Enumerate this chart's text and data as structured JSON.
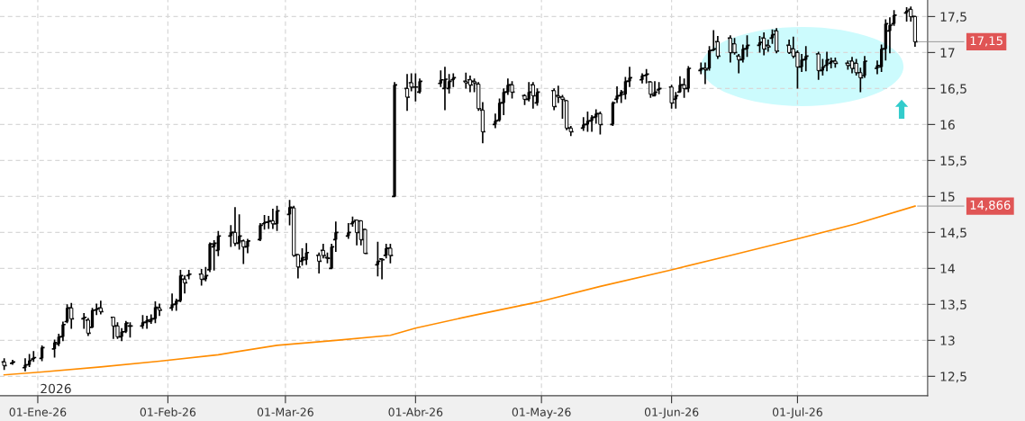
{
  "chart_data": {
    "type": "candlestick",
    "color": "#000000",
    "x": [
      "2025-12-24",
      "2025-12-26",
      "2025-12-29",
      "2025-12-30",
      "2025-12-31",
      "2026-01-02",
      "2026-01-05",
      "2026-01-06",
      "2026-01-07",
      "2026-01-08",
      "2026-01-09",
      "2026-01-12",
      "2026-01-13",
      "2026-01-14",
      "2026-01-15",
      "2026-01-16",
      "2026-01-19",
      "2026-01-20",
      "2026-01-21",
      "2026-01-22",
      "2026-01-23",
      "2026-01-26",
      "2026-01-27",
      "2026-01-28",
      "2026-01-29",
      "2026-01-30",
      "2026-02-02",
      "2026-02-03",
      "2026-02-04",
      "2026-02-05",
      "2026-02-06",
      "2026-02-09",
      "2026-02-10",
      "2026-02-11",
      "2026-02-12",
      "2026-02-13",
      "2026-02-16",
      "2026-02-17",
      "2026-02-18",
      "2026-02-19",
      "2026-02-20",
      "2026-02-23",
      "2026-02-24",
      "2026-02-25",
      "2026-02-26",
      "2026-02-27",
      "2026-03-02",
      "2026-03-03",
      "2026-03-04",
      "2026-03-05",
      "2026-03-06",
      "2026-03-09",
      "2026-03-10",
      "2026-03-11",
      "2026-03-12",
      "2026-03-13",
      "2026-03-16",
      "2026-03-17",
      "2026-03-18",
      "2026-03-19",
      "2026-03-20",
      "2026-03-23",
      "2026-03-24",
      "2026-03-25",
      "2026-03-26",
      "2026-03-27",
      "2026-03-30",
      "2026-03-31",
      "2026-04-01",
      "2026-04-02",
      "2026-04-07",
      "2026-04-08",
      "2026-04-09",
      "2026-04-10",
      "2026-04-13",
      "2026-04-14",
      "2026-04-15",
      "2026-04-16",
      "2026-04-17",
      "2026-04-20",
      "2026-04-21",
      "2026-04-22",
      "2026-04-23",
      "2026-04-24",
      "2026-04-27",
      "2026-04-28",
      "2026-04-29",
      "2026-04-30",
      "2026-05-04",
      "2026-05-05",
      "2026-05-06",
      "2026-05-07",
      "2026-05-08",
      "2026-05-11",
      "2026-05-12",
      "2026-05-13",
      "2026-05-14",
      "2026-05-15",
      "2026-05-18",
      "2026-05-19",
      "2026-05-20",
      "2026-05-21",
      "2026-05-22",
      "2026-05-25",
      "2026-05-26",
      "2026-05-27",
      "2026-05-28",
      "2026-05-29",
      "2026-06-01",
      "2026-06-02",
      "2026-06-03",
      "2026-06-04",
      "2026-06-05",
      "2026-06-08",
      "2026-06-09",
      "2026-06-10",
      "2026-06-11",
      "2026-06-12",
      "2026-06-15",
      "2026-06-16",
      "2026-06-17",
      "2026-06-18",
      "2026-06-19",
      "2026-06-22",
      "2026-06-23",
      "2026-06-24",
      "2026-06-25",
      "2026-06-26",
      "2026-06-29",
      "2026-06-30",
      "2026-07-01",
      "2026-07-02",
      "2026-07-03",
      "2026-07-06",
      "2026-07-07",
      "2026-07-08",
      "2026-07-09",
      "2026-07-10",
      "2026-07-13",
      "2026-07-14",
      "2026-07-15",
      "2026-07-16",
      "2026-07-17",
      "2026-07-20",
      "2026-07-21",
      "2026-07-22",
      "2026-07-23",
      "2026-07-24",
      "2026-07-27",
      "2026-07-28",
      "2026-07-29"
    ],
    "ohlc": [
      [
        12.7,
        12.74,
        12.6,
        12.65
      ],
      [
        12.68,
        12.72,
        12.67,
        12.7
      ],
      [
        12.62,
        12.74,
        12.58,
        12.66
      ],
      [
        12.66,
        12.8,
        12.64,
        12.72
      ],
      [
        12.74,
        12.84,
        12.71,
        12.76
      ],
      [
        12.75,
        12.92,
        12.72,
        12.9
      ],
      [
        12.88,
        13.0,
        12.77,
        12.97
      ],
      [
        12.95,
        13.08,
        12.93,
        13.05
      ],
      [
        13.05,
        13.25,
        13.0,
        13.22
      ],
      [
        13.26,
        13.49,
        13.25,
        13.45
      ],
      [
        13.45,
        13.51,
        13.17,
        13.3
      ],
      [
        13.3,
        13.37,
        13.17,
        13.32
      ],
      [
        13.28,
        13.3,
        13.07,
        13.1
      ],
      [
        13.18,
        13.44,
        13.18,
        13.42
      ],
      [
        13.42,
        13.5,
        13.36,
        13.44
      ],
      [
        13.45,
        13.54,
        13.37,
        13.4
      ],
      [
        13.32,
        13.32,
        13.03,
        13.2
      ],
      [
        13.2,
        13.24,
        13.03,
        13.05
      ],
      [
        13.05,
        13.16,
        13.0,
        13.12
      ],
      [
        13.12,
        13.26,
        13.11,
        13.24
      ],
      [
        13.2,
        13.24,
        13.05,
        13.2
      ],
      [
        13.2,
        13.34,
        13.17,
        13.25
      ],
      [
        13.25,
        13.33,
        13.17,
        13.28
      ],
      [
        13.26,
        13.35,
        13.24,
        13.3
      ],
      [
        13.3,
        13.53,
        13.25,
        13.46
      ],
      [
        13.45,
        13.5,
        13.35,
        13.42
      ],
      [
        13.45,
        13.64,
        13.42,
        13.5
      ],
      [
        13.5,
        13.57,
        13.42,
        13.55
      ],
      [
        13.55,
        13.97,
        13.54,
        13.9
      ],
      [
        13.85,
        13.89,
        13.66,
        13.8
      ],
      [
        13.9,
        13.97,
        13.86,
        13.92
      ],
      [
        13.92,
        13.98,
        13.77,
        13.85
      ],
      [
        13.85,
        14.01,
        13.83,
        13.9
      ],
      [
        13.98,
        14.35,
        13.96,
        14.34
      ],
      [
        14.3,
        14.38,
        13.98,
        14.35
      ],
      [
        14.25,
        14.51,
        14.18,
        14.45
      ],
      [
        14.45,
        14.59,
        14.31,
        14.5
      ],
      [
        14.5,
        14.84,
        14.32,
        14.35
      ],
      [
        14.35,
        14.74,
        14.27,
        14.45
      ],
      [
        14.38,
        14.39,
        14.07,
        14.3
      ],
      [
        14.3,
        14.4,
        14.22,
        14.38
      ],
      [
        14.4,
        14.62,
        14.39,
        14.6
      ],
      [
        14.62,
        14.73,
        14.55,
        14.64
      ],
      [
        14.64,
        14.72,
        14.56,
        14.66
      ],
      [
        14.66,
        14.82,
        14.56,
        14.62
      ],
      [
        14.62,
        14.86,
        14.53,
        14.8
      ],
      [
        14.75,
        14.94,
        14.61,
        14.85
      ],
      [
        14.84,
        14.86,
        14.17,
        14.18
      ],
      [
        14.19,
        14.19,
        13.87,
        14.02
      ],
      [
        14.1,
        14.27,
        14.05,
        14.15
      ],
      [
        14.12,
        14.34,
        14.06,
        14.22
      ],
      [
        14.18,
        14.21,
        13.94,
        14.1
      ],
      [
        14.25,
        14.33,
        14.15,
        14.18
      ],
      [
        14.15,
        14.21,
        14.08,
        14.14
      ],
      [
        14.0,
        14.33,
        14.0,
        14.3
      ],
      [
        14.4,
        14.64,
        14.24,
        14.5
      ],
      [
        14.45,
        14.62,
        14.42,
        14.5
      ],
      [
        14.62,
        14.71,
        14.59,
        14.65
      ],
      [
        14.67,
        14.67,
        14.33,
        14.5
      ],
      [
        14.66,
        14.66,
        14.33,
        14.4
      ],
      [
        14.54,
        14.54,
        14.21,
        14.21
      ],
      [
        14.05,
        14.36,
        13.9,
        14.1
      ],
      [
        14.13,
        14.13,
        13.86,
        14.12
      ],
      [
        14.18,
        14.33,
        14.15,
        14.28
      ],
      [
        14.28,
        14.33,
        14.08,
        14.18
      ],
      [
        15.0,
        16.58,
        15.0,
        16.55
      ],
      [
        16.5,
        16.69,
        16.2,
        16.38
      ],
      [
        16.58,
        16.7,
        16.47,
        16.52
      ],
      [
        16.52,
        16.7,
        16.33,
        16.52
      ],
      [
        16.45,
        16.63,
        16.44,
        16.6
      ],
      [
        16.57,
        16.74,
        16.53,
        16.62
      ],
      [
        16.5,
        16.79,
        16.21,
        16.63
      ],
      [
        16.5,
        16.69,
        16.44,
        16.6
      ],
      [
        16.62,
        16.7,
        16.53,
        16.65
      ],
      [
        16.6,
        16.71,
        16.51,
        16.58
      ],
      [
        16.62,
        16.67,
        16.46,
        16.55
      ],
      [
        16.6,
        16.63,
        16.46,
        16.58
      ],
      [
        16.56,
        16.58,
        16.2,
        16.22
      ],
      [
        16.2,
        16.3,
        15.75,
        15.9
      ],
      [
        16.0,
        16.14,
        15.96,
        16.05
      ],
      [
        16.06,
        16.35,
        16.05,
        16.3
      ],
      [
        16.3,
        16.49,
        16.14,
        16.45
      ],
      [
        16.45,
        16.63,
        16.42,
        16.55
      ],
      [
        16.55,
        16.59,
        16.37,
        16.45
      ],
      [
        16.4,
        16.41,
        16.28,
        16.35
      ],
      [
        16.35,
        16.58,
        16.33,
        16.45
      ],
      [
        16.55,
        16.58,
        16.23,
        16.4
      ],
      [
        16.3,
        16.49,
        16.27,
        16.45
      ],
      [
        16.47,
        16.49,
        16.21,
        16.25
      ],
      [
        16.4,
        16.53,
        16.31,
        16.38
      ],
      [
        16.38,
        16.4,
        16.09,
        16.35
      ],
      [
        16.33,
        16.33,
        15.93,
        15.95
      ],
      [
        15.95,
        15.97,
        15.85,
        15.9
      ],
      [
        15.95,
        16.09,
        15.92,
        16.0
      ],
      [
        16.0,
        16.17,
        15.91,
        16.05
      ],
      [
        16.05,
        16.12,
        15.91,
        16.1
      ],
      [
        16.1,
        16.2,
        16.02,
        16.15
      ],
      [
        16.15,
        16.17,
        15.87,
        16.0
      ],
      [
        16.0,
        16.31,
        15.99,
        16.3
      ],
      [
        16.35,
        16.52,
        16.31,
        16.4
      ],
      [
        16.4,
        16.47,
        16.31,
        16.45
      ],
      [
        16.42,
        16.65,
        16.36,
        16.6
      ],
      [
        16.6,
        16.79,
        16.53,
        16.65
      ],
      [
        16.62,
        16.7,
        16.58,
        16.68
      ],
      [
        16.68,
        16.76,
        16.58,
        16.7
      ],
      [
        16.59,
        16.59,
        16.38,
        16.42
      ],
      [
        16.4,
        16.59,
        16.4,
        16.45
      ],
      [
        16.48,
        16.58,
        16.43,
        16.5
      ],
      [
        16.52,
        16.54,
        16.23,
        16.3
      ],
      [
        16.35,
        16.44,
        16.23,
        16.4
      ],
      [
        16.45,
        16.66,
        16.45,
        16.55
      ],
      [
        16.55,
        16.63,
        16.38,
        16.5
      ],
      [
        16.5,
        16.8,
        16.46,
        16.78
      ],
      [
        16.75,
        16.85,
        16.71,
        16.78
      ],
      [
        16.78,
        16.85,
        16.57,
        16.76
      ],
      [
        16.78,
        17.08,
        16.76,
        17.03
      ],
      [
        17.03,
        17.3,
        17.03,
        17.05
      ],
      [
        17.15,
        17.22,
        16.92,
        16.95
      ],
      [
        17.2,
        17.23,
        16.87,
        17.0
      ],
      [
        17.12,
        17.19,
        16.98,
        17.0
      ],
      [
        16.95,
        16.97,
        16.72,
        16.9
      ],
      [
        16.9,
        17.1,
        16.87,
        17.05
      ],
      [
        17.05,
        17.23,
        16.95,
        17.1
      ],
      [
        17.1,
        17.22,
        17.01,
        17.14
      ],
      [
        17.2,
        17.27,
        16.97,
        17.05
      ],
      [
        17.1,
        17.17,
        17.02,
        17.08
      ],
      [
        17.2,
        17.31,
        17.13,
        17.25
      ],
      [
        17.3,
        17.33,
        17.0,
        17.02
      ],
      [
        17.1,
        17.17,
        16.99,
        17.0
      ],
      [
        17.05,
        17.21,
        16.93,
        16.95
      ],
      [
        17.0,
        17.02,
        16.51,
        16.8
      ],
      [
        16.8,
        16.97,
        16.74,
        16.9
      ],
      [
        16.9,
        17.08,
        16.75,
        16.95
      ],
      [
        16.98,
        17.0,
        16.63,
        16.75
      ],
      [
        16.75,
        16.9,
        16.69,
        16.8
      ],
      [
        16.82,
        17.0,
        16.75,
        16.9
      ],
      [
        16.85,
        16.92,
        16.79,
        16.88
      ],
      [
        16.88,
        16.92,
        16.8,
        16.85
      ],
      [
        16.85,
        16.88,
        16.77,
        16.82
      ],
      [
        16.88,
        16.93,
        16.72,
        16.78
      ],
      [
        16.85,
        16.9,
        16.69,
        16.72
      ],
      [
        16.72,
        16.78,
        16.46,
        16.65
      ],
      [
        16.68,
        16.94,
        16.66,
        16.88
      ],
      [
        16.78,
        16.88,
        16.71,
        16.82
      ],
      [
        16.8,
        17.1,
        16.74,
        17.05
      ],
      [
        17.05,
        17.45,
        16.9,
        17.4
      ],
      [
        17.3,
        17.48,
        17.0,
        17.38
      ],
      [
        17.4,
        17.58,
        17.38,
        17.52
      ],
      [
        17.55,
        17.62,
        17.44,
        17.58
      ],
      [
        17.6,
        17.63,
        17.44,
        17.5
      ],
      [
        17.5,
        17.5,
        17.09,
        17.15
      ]
    ],
    "series": [
      {
        "type": "line",
        "color": "#ff8c00",
        "x": [
          "2025-12-24",
          "2026-01-02",
          "2026-01-16",
          "2026-01-30",
          "2026-02-13",
          "2026-02-27",
          "2026-03-13",
          "2026-03-26",
          "2026-04-01",
          "2026-04-15",
          "2026-04-30",
          "2026-05-15",
          "2026-06-01",
          "2026-06-15",
          "2026-07-01",
          "2026-07-15",
          "2026-07-29"
        ],
        "values": [
          12.52,
          12.56,
          12.63,
          12.71,
          12.8,
          12.93,
          13.0,
          13.07,
          13.17,
          13.35,
          13.53,
          13.75,
          13.98,
          14.18,
          14.41,
          14.62,
          14.866
        ]
      }
    ],
    "xlim": [
      "2025-12-23",
      "2026-08-01"
    ],
    "xticks": [
      {
        "value": "2026-01-01",
        "label": "01-Ene-26"
      },
      {
        "value": "2026-02-01",
        "label": "01-Feb-26"
      },
      {
        "value": "2026-03-01",
        "label": "01-Mar-26"
      },
      {
        "value": "2026-04-01",
        "label": "01-Abr-26"
      },
      {
        "value": "2026-05-01",
        "label": "01-May-26"
      },
      {
        "value": "2026-06-01",
        "label": "01-Jun-26"
      },
      {
        "value": "2026-07-01",
        "label": "01-Jul-26"
      }
    ],
    "ylim": [
      12.23,
      17.73
    ],
    "yticks": [
      {
        "value": 12.5,
        "label": "12,5"
      },
      13,
      {
        "value": 13.5,
        "label": "13,5"
      },
      14,
      {
        "value": 14.5,
        "label": "14,5"
      },
      15,
      {
        "value": 15.5,
        "label": "15,5"
      },
      16,
      {
        "value": 16.5,
        "label": "16,5"
      },
      17,
      {
        "value": 17.5,
        "label": "17,5"
      }
    ],
    "grid": true,
    "annotations": [
      "2026",
      {
        "text": "17,15",
        "x": "2026-07-29",
        "y": 17.15
      },
      {
        "text": "14,866",
        "x": "2026-07-29",
        "y": 14.866
      }
    ]
  }
}
